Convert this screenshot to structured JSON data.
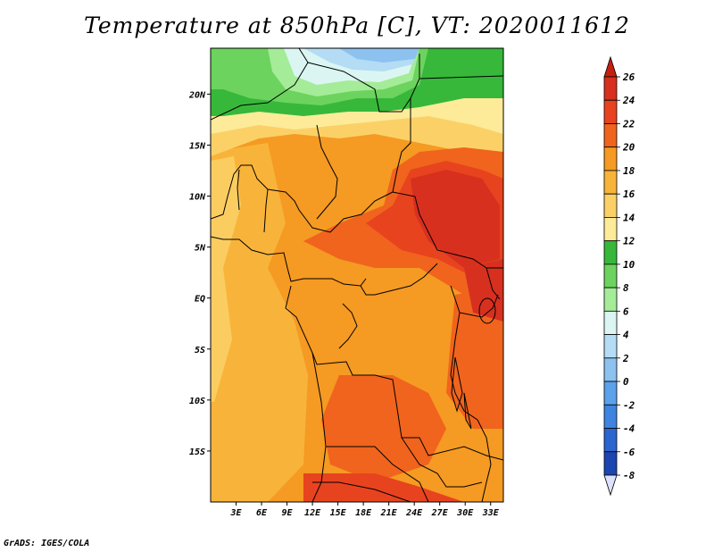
{
  "title": "Temperature at 850hPa [C], VT: 2020011612",
  "credit": "GrADS: IGES/COLA",
  "map": {
    "lon_range": [
      0,
      34.5
    ],
    "lat_range": [
      -20,
      24.5
    ],
    "lat_ticks": [
      {
        "value": 20,
        "label": "20N"
      },
      {
        "value": 15,
        "label": "15N"
      },
      {
        "value": 10,
        "label": "10N"
      },
      {
        "value": 5,
        "label": "5N"
      },
      {
        "value": 0,
        "label": "EQ"
      },
      {
        "value": -5,
        "label": "5S"
      },
      {
        "value": -10,
        "label": "10S"
      },
      {
        "value": -15,
        "label": "15S"
      }
    ],
    "lon_ticks": [
      {
        "value": 3,
        "label": "3E"
      },
      {
        "value": 6,
        "label": "6E"
      },
      {
        "value": 9,
        "label": "9E"
      },
      {
        "value": 12,
        "label": "12E"
      },
      {
        "value": 15,
        "label": "15E"
      },
      {
        "value": 18,
        "label": "18E"
      },
      {
        "value": 21,
        "label": "21E"
      },
      {
        "value": 24,
        "label": "24E"
      },
      {
        "value": 27,
        "label": "27E"
      },
      {
        "value": 30,
        "label": "30E"
      },
      {
        "value": 33,
        "label": "33E"
      }
    ]
  },
  "colorbar": {
    "levels": [
      {
        "label": "26",
        "color": "#d7301f"
      },
      {
        "label": "24",
        "color": "#e8431f"
      },
      {
        "label": "22",
        "color": "#f0641d"
      },
      {
        "label": "20",
        "color": "#f59a22"
      },
      {
        "label": "18",
        "color": "#f8b43a"
      },
      {
        "label": "16",
        "color": "#fbd167"
      },
      {
        "label": "14",
        "color": "#fdeb9a"
      },
      {
        "label": "12",
        "color": "#37b83a"
      },
      {
        "label": "10",
        "color": "#6cd35e"
      },
      {
        "label": "8",
        "color": "#a4ec98"
      },
      {
        "label": "6",
        "color": "#dbf6f2"
      },
      {
        "label": "4",
        "color": "#b5dcf5"
      },
      {
        "label": "2",
        "color": "#8cc1f0"
      },
      {
        "label": "0",
        "color": "#5aa2ea"
      },
      {
        "label": "-2",
        "color": "#3e84e0"
      },
      {
        "label": "-4",
        "color": "#2b65cf"
      },
      {
        "label": "-6",
        "color": "#1b45b0"
      },
      {
        "label": "-8",
        "color": "#0c1d78"
      }
    ],
    "top_color": "#c5200f",
    "bottom_color": "#dde0ff"
  },
  "colors": {
    "land_background": "#f59a22",
    "border": "#000000"
  }
}
